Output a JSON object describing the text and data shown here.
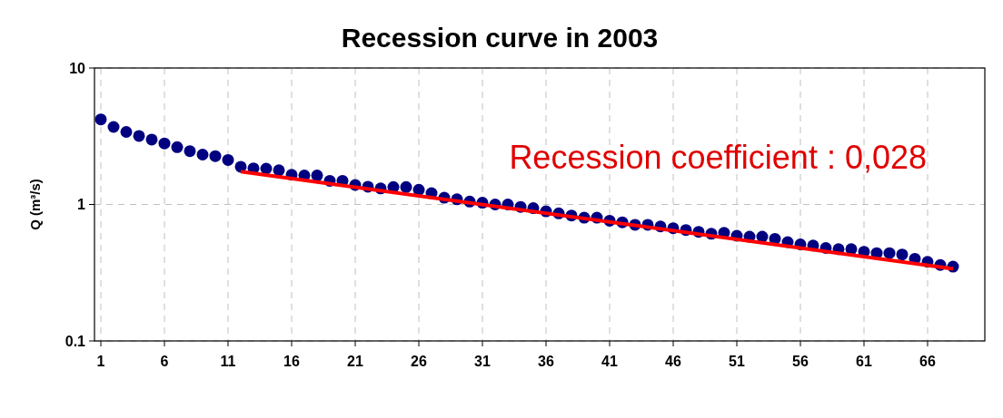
{
  "chart_data": {
    "type": "scatter",
    "title": "Recession curve in 2003",
    "ylabel": "Q (m³/s)",
    "annotations": [
      "Recession coefficient : 0,028"
    ],
    "log": "y",
    "grid": true,
    "xlim": [
      0.5,
      70.5
    ],
    "xticks": [
      1,
      6,
      11,
      16,
      21,
      26,
      31,
      36,
      41,
      46,
      51,
      56,
      61,
      66
    ],
    "ylim": [
      0.1,
      10
    ],
    "yticks": [
      0.1,
      1,
      10
    ],
    "series": [
      {
        "marker": "circle",
        "color": "#000080",
        "x": [
          1,
          2,
          3,
          4,
          5,
          6,
          7,
          8,
          9,
          10,
          11,
          12,
          13,
          14,
          15,
          16,
          17,
          18,
          19,
          20,
          21,
          22,
          23,
          24,
          25,
          26,
          27,
          28,
          29,
          30,
          31,
          32,
          33,
          34,
          35,
          36,
          37,
          38,
          39,
          40,
          41,
          42,
          43,
          44,
          45,
          46,
          47,
          48,
          49,
          50,
          51,
          52,
          53,
          54,
          55,
          56,
          57,
          58,
          59,
          60,
          61,
          62,
          63,
          64,
          65,
          66,
          67,
          68
        ],
        "values": [
          4.2,
          3.7,
          3.4,
          3.18,
          2.99,
          2.8,
          2.63,
          2.46,
          2.32,
          2.26,
          2.12,
          1.89,
          1.84,
          1.83,
          1.78,
          1.65,
          1.63,
          1.63,
          1.49,
          1.49,
          1.39,
          1.35,
          1.31,
          1.34,
          1.34,
          1.28,
          1.21,
          1.12,
          1.09,
          1.05,
          1.03,
          1.0,
          1.0,
          0.96,
          0.94,
          0.89,
          0.86,
          0.83,
          0.8,
          0.8,
          0.76,
          0.74,
          0.71,
          0.71,
          0.69,
          0.67,
          0.65,
          0.63,
          0.61,
          0.62,
          0.59,
          0.58,
          0.58,
          0.56,
          0.53,
          0.51,
          0.5,
          0.48,
          0.47,
          0.47,
          0.45,
          0.44,
          0.44,
          0.43,
          0.4,
          0.38,
          0.36,
          0.35
        ]
      },
      {
        "type": "line",
        "color": "#ff0000",
        "x": [
          12,
          68
        ],
        "values": [
          1.74,
          0.338
        ]
      }
    ]
  }
}
